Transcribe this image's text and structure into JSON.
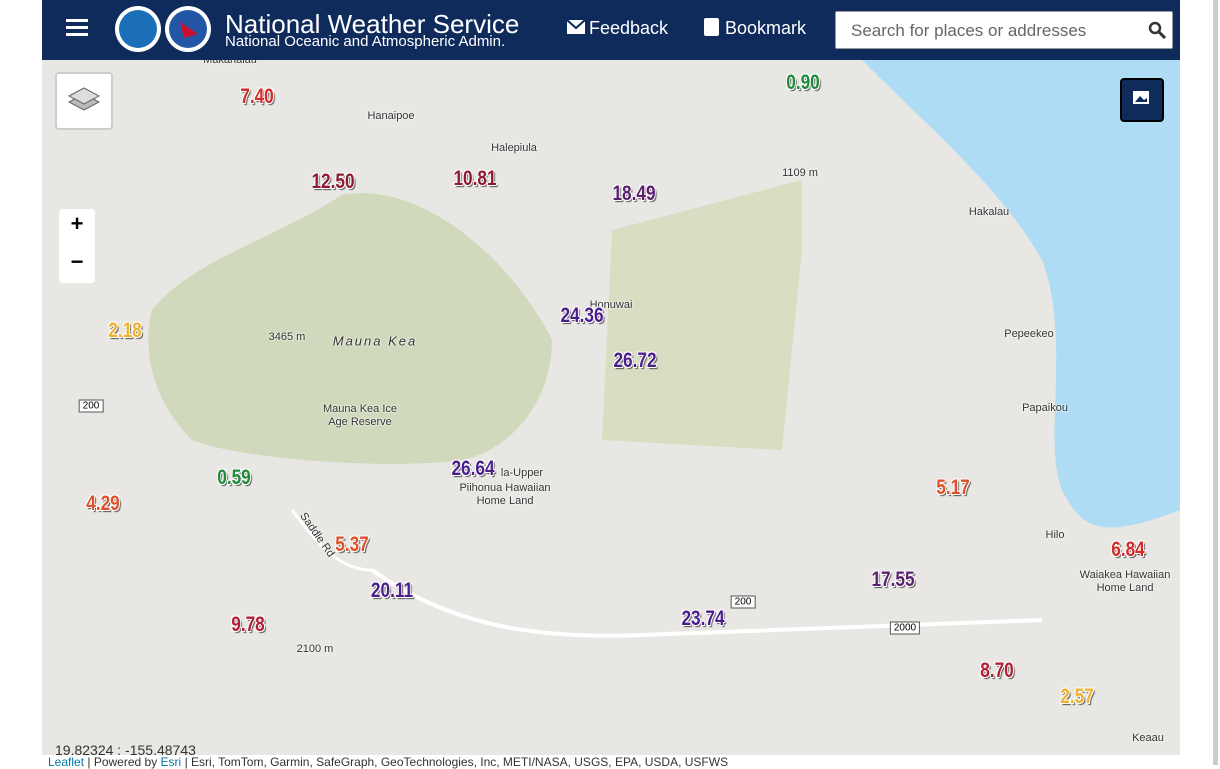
{
  "header": {
    "title": "National Weather Service",
    "subtitle": "National Oceanic and Atmospheric Admin.",
    "feedback": "Feedback",
    "bookmark": "Bookmark",
    "search_placeholder": "Search for places or addresses"
  },
  "map": {
    "zoom_in": "+",
    "zoom_out": "−",
    "places": [
      "Makahalau",
      "Hanaipoe",
      "Halepiula",
      "1109 m",
      "Hakalau",
      "Honuwai",
      "3465 m",
      "Mauna Kea",
      "Pepeekeo",
      "Mauna Kea Ice",
      "Age Reserve",
      "Papaikou",
      "la-Upper",
      "Piihonua Hawaiian",
      "Home Land",
      "Saddle Rd",
      "Hilo",
      "Waiakea Hawaiian",
      "Home Land",
      "2100 m",
      "Keaau"
    ],
    "road_shields": [
      "200",
      "200",
      "2000"
    ],
    "rainfall": [
      {
        "label": "7.40",
        "color": "#d42a2a"
      },
      {
        "label": "0.90",
        "color": "#1e8a3a"
      },
      {
        "label": "12.50",
        "color": "#8e1b30"
      },
      {
        "label": "10.81",
        "color": "#8e1b30"
      },
      {
        "label": "18.49",
        "color": "#5c1f6e"
      },
      {
        "label": "2.18",
        "color": "#f0b030"
      },
      {
        "label": "24.36",
        "color": "#4c1d8c"
      },
      {
        "label": "26.72",
        "color": "#4c1d8c"
      },
      {
        "label": "0.59",
        "color": "#1e8a3a"
      },
      {
        "label": "26.64",
        "color": "#4c1d8c"
      },
      {
        "label": "4.29",
        "color": "#e0502a"
      },
      {
        "label": "5.37",
        "color": "#e0502a"
      },
      {
        "label": "5.17",
        "color": "#e0502a"
      },
      {
        "label": "6.84",
        "color": "#d42a2a"
      },
      {
        "label": "20.11",
        "color": "#4c1d8c"
      },
      {
        "label": "17.55",
        "color": "#5c1f6e"
      },
      {
        "label": "9.78",
        "color": "#b01f35"
      },
      {
        "label": "23.74",
        "color": "#4c1d8c"
      },
      {
        "label": "8.70",
        "color": "#b01f35"
      },
      {
        "label": "2.57",
        "color": "#f0b030"
      }
    ],
    "coordinates": "19.82324 : -155.48743",
    "attribution": {
      "leaflet": "Leaflet",
      "powered_by": "| Powered by",
      "esri": "Esri",
      "sources": "| Esri, TomTom, Garmin, SafeGraph, GeoTechnologies, Inc, METI/NASA, USGS, EPA, USDA, USFWS"
    }
  }
}
